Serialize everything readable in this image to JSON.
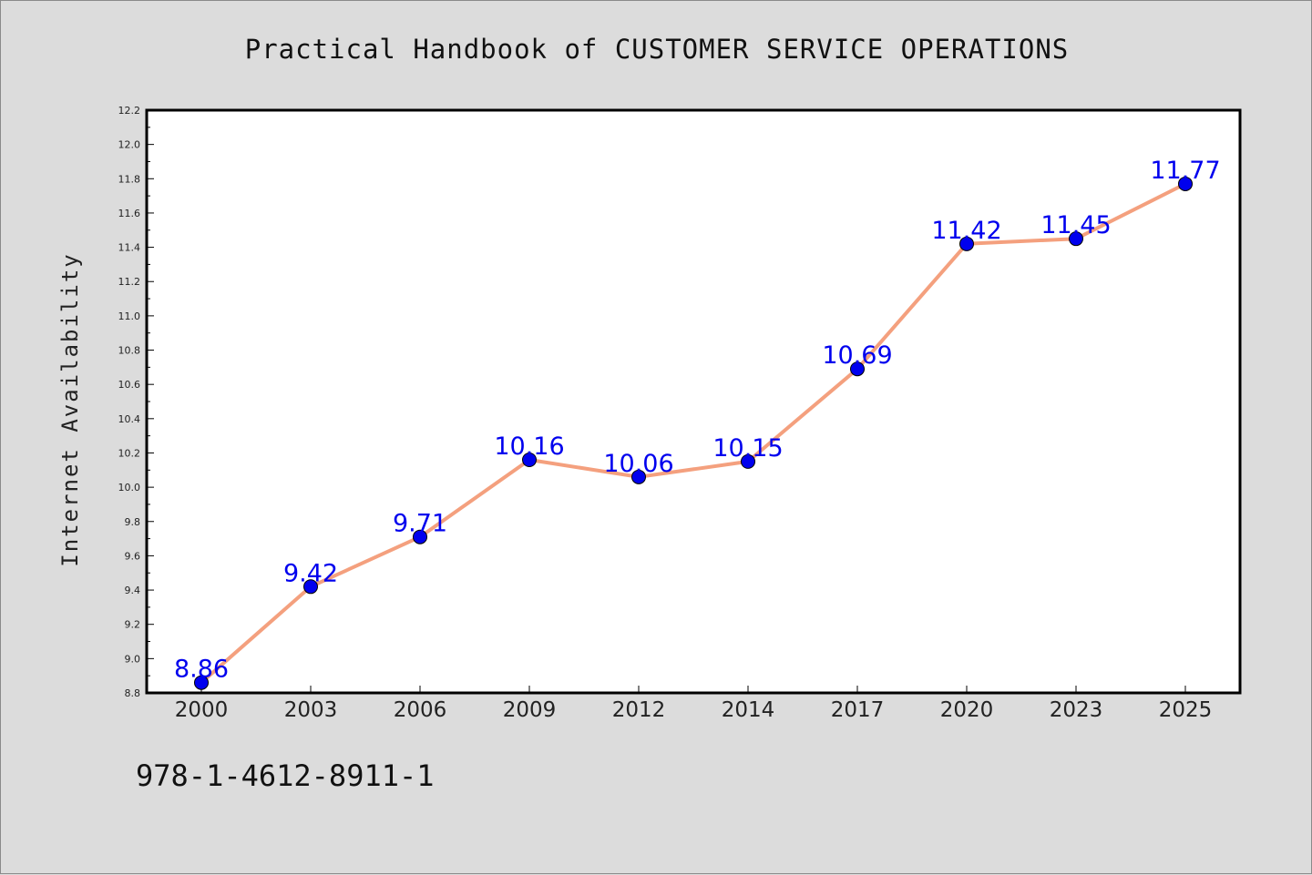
{
  "chart_data": {
    "type": "line",
    "title": "Practical Handbook of CUSTOMER SERVICE OPERATIONS",
    "xlabel": "",
    "ylabel": "Internet Availability",
    "categories": [
      "2000",
      "2003",
      "2006",
      "2009",
      "2012",
      "2014",
      "2017",
      "2020",
      "2023",
      "2025"
    ],
    "series": [
      {
        "values": [
          8.86,
          9.42,
          9.71,
          10.16,
          10.06,
          10.15,
          10.69,
          11.42,
          11.45,
          11.77
        ]
      }
    ],
    "data_labels": [
      "8.86",
      "9.42",
      "9.71",
      "10.16",
      "10.06",
      "10.15",
      "10.69",
      "11.42",
      "11.45",
      "11.77"
    ],
    "yticks": [
      "8.8",
      "9.0",
      "9.2",
      "9.4",
      "9.6",
      "9.8",
      "10.0",
      "10.2",
      "10.4",
      "10.6",
      "10.8",
      "11.0",
      "11.2",
      "11.4",
      "11.6",
      "11.8",
      "12.0",
      "12.2"
    ],
    "ylim": [
      8.8,
      12.2
    ],
    "grid": false,
    "legend": "none",
    "colors": {
      "line": "#f4a07e",
      "marker": "#0000ee",
      "label": "#0000ee",
      "background": "#dcdcdc",
      "plot": "#ffffff"
    }
  },
  "footer": {
    "isbn": "978-1-4612-8911-1"
  }
}
